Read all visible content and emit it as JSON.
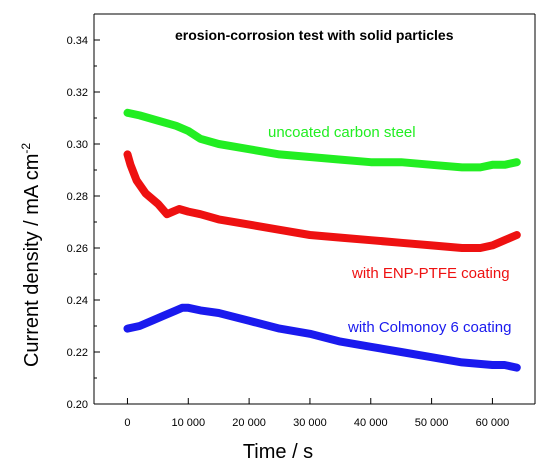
{
  "chart_data": {
    "type": "line",
    "title": "erosion-corrosion test with solid particles",
    "xlabel": "Time / s",
    "ylabel": "Current density / mA cm",
    "ylabel_superscript": "-2",
    "xlim": [
      -5500,
      67000
    ],
    "ylim": [
      0.2,
      0.35
    ],
    "xticks": [
      0,
      10000,
      20000,
      30000,
      40000,
      50000,
      60000
    ],
    "xtick_labels": [
      "0",
      "10 000",
      "20 000",
      "30 000",
      "40 000",
      "50 000",
      "60 000"
    ],
    "yticks": [
      0.2,
      0.22,
      0.24,
      0.26,
      0.28,
      0.3,
      0.32,
      0.34
    ],
    "ytick_labels": [
      "0.20",
      "0.22",
      "0.24",
      "0.26",
      "0.28",
      "0.30",
      "0.32",
      "0.34"
    ],
    "grid": false,
    "legend": "inline labels",
    "series": [
      {
        "name": "uncoated carbon steel",
        "color": "#22ee22",
        "x": [
          0,
          2000,
          5000,
          8000,
          10000,
          12000,
          15000,
          20000,
          25000,
          30000,
          35000,
          40000,
          45000,
          50000,
          55000,
          56000,
          58000,
          60000,
          62000,
          64000
        ],
        "y": [
          0.312,
          0.311,
          0.309,
          0.307,
          0.305,
          0.302,
          0.3,
          0.298,
          0.296,
          0.295,
          0.294,
          0.293,
          0.293,
          0.292,
          0.291,
          0.291,
          0.291,
          0.292,
          0.292,
          0.293
        ]
      },
      {
        "name": "with ENP-PTFE coating",
        "color": "#ee1111",
        "x": [
          0,
          500,
          1500,
          3000,
          5000,
          6500,
          7500,
          8500,
          10000,
          12000,
          15000,
          20000,
          25000,
          30000,
          35000,
          40000,
          45000,
          50000,
          55000,
          58000,
          60000,
          62000,
          64000
        ],
        "y": [
          0.296,
          0.292,
          0.286,
          0.281,
          0.277,
          0.273,
          0.274,
          0.275,
          0.274,
          0.273,
          0.271,
          0.269,
          0.267,
          0.265,
          0.264,
          0.263,
          0.262,
          0.261,
          0.26,
          0.26,
          0.261,
          0.263,
          0.265
        ]
      },
      {
        "name": "with Colmonoy 6 coating",
        "color": "#1a1aee",
        "x": [
          0,
          2000,
          4000,
          6000,
          8000,
          9000,
          10000,
          12000,
          15000,
          20000,
          25000,
          30000,
          35000,
          40000,
          45000,
          50000,
          55000,
          60000,
          62000,
          64000
        ],
        "y": [
          0.229,
          0.23,
          0.232,
          0.234,
          0.236,
          0.237,
          0.237,
          0.236,
          0.235,
          0.232,
          0.229,
          0.227,
          0.224,
          0.222,
          0.22,
          0.218,
          0.216,
          0.215,
          0.215,
          0.214
        ]
      }
    ]
  }
}
